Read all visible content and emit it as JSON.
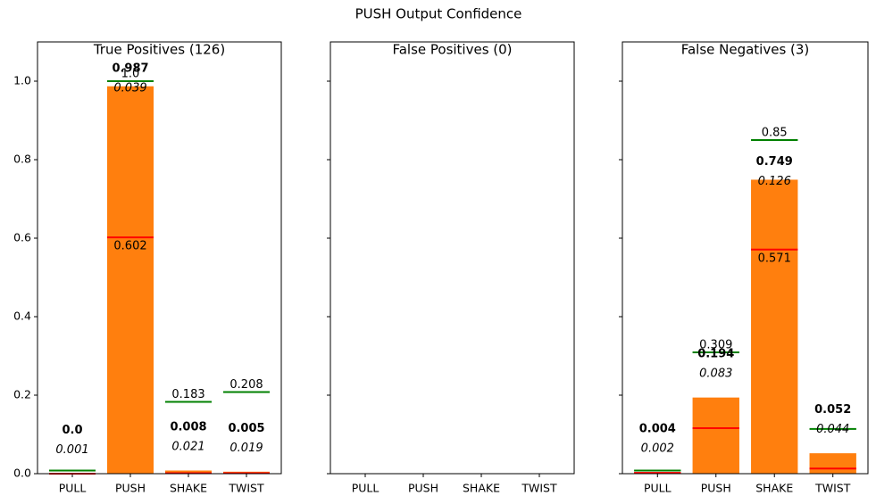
{
  "suptitle": "PUSH Output Confidence",
  "chart_data": [
    {
      "type": "bar",
      "title": "True Positives (126)",
      "categories": [
        "PULL",
        "PUSH",
        "SHAKE",
        "TWIST"
      ],
      "values": [
        0.0,
        0.987,
        0.008,
        0.005
      ],
      "value_labels": [
        "0.0",
        "0.987",
        "0.008",
        "0.005"
      ],
      "std": [
        0.001,
        0.039,
        0.021,
        0.019
      ],
      "max": [
        0.008,
        1.0,
        0.183,
        0.208
      ],
      "max_labels": [
        null,
        "1.0",
        "0.183",
        "0.208"
      ],
      "min": [
        0.0,
        0.602,
        0.001,
        0.001
      ],
      "min_labels": [
        null,
        "0.602",
        null,
        null
      ],
      "color": "#ff7f0e",
      "max_color": "#008000",
      "min_color": "#ff0000",
      "ylim": [
        0,
        1.1
      ],
      "yticks": [
        {
          "value": 0,
          "label": "0.0"
        },
        0.2,
        0.4,
        0.6,
        0.8,
        {
          "value": 1,
          "label": "1.0"
        }
      ]
    },
    {
      "type": "bar",
      "title": "False Positives (0)",
      "categories": [
        "PULL",
        "PUSH",
        "SHAKE",
        "TWIST"
      ],
      "ylim": [
        0,
        1.1
      ]
    },
    {
      "type": "bar",
      "title": "False Negatives (3)",
      "categories": [
        "PULL",
        "PUSH",
        "SHAKE",
        "TWIST"
      ],
      "values": [
        0.004,
        0.194,
        0.749,
        0.052
      ],
      "std": [
        0.002,
        0.083,
        0.126,
        0.044
      ],
      "max": [
        0.008,
        0.309,
        0.85,
        0.114
      ],
      "max_labels": [
        null,
        "0.309",
        "0.85",
        null
      ],
      "min": [
        0.002,
        0.116,
        0.571,
        0.013
      ],
      "min_labels": [
        null,
        null,
        "0.571",
        null
      ],
      "color": "#ff7f0e",
      "max_color": "#008000",
      "min_color": "#ff0000",
      "ylim": [
        0,
        1.1
      ]
    }
  ]
}
